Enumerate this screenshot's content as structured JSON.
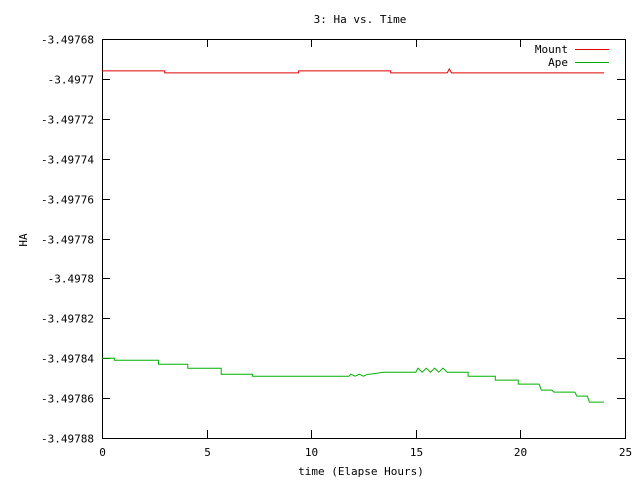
{
  "chart_data": {
    "type": "line",
    "title": "3: Ha vs. Time",
    "xlabel": "time (Elapse Hours)",
    "ylabel": "HA",
    "xlim": [
      0,
      25
    ],
    "ylim": [
      -3.49788,
      -3.49768
    ],
    "xticks": [
      0,
      5,
      10,
      15,
      20,
      25
    ],
    "xtick_labels": [
      "0",
      "5",
      "10",
      "15",
      "20",
      "25"
    ],
    "yticks": [
      -3.49768,
      -3.4977,
      -3.49772,
      -3.49774,
      -3.49776,
      -3.49778,
      -3.4978,
      -3.49782,
      -3.49784,
      -3.49786,
      -3.49788
    ],
    "ytick_labels": [
      "-3.49768",
      "-3.4977",
      "-3.49772",
      "-3.49774",
      "-3.49776",
      "-3.49778",
      "-3.4978",
      "-3.49782",
      "-3.49784",
      "-3.49786",
      "-3.49788"
    ],
    "grid": false,
    "legend_position": "top-right",
    "series": [
      {
        "name": "Mount",
        "color": "#e00000",
        "x": [
          0,
          3.0,
          3.0,
          9.4,
          9.4,
          13.8,
          13.8,
          16.5,
          16.6,
          16.7,
          24
        ],
        "y": [
          -3.497696,
          -3.497696,
          -3.497697,
          -3.497697,
          -3.497696,
          -3.497696,
          -3.497697,
          -3.497697,
          -3.497695,
          -3.497697,
          -3.497697
        ]
      },
      {
        "name": "Ape",
        "color": "#00b000",
        "x": [
          0,
          0.6,
          0.6,
          2.7,
          2.7,
          4.1,
          4.1,
          5.7,
          5.7,
          7.2,
          7.2,
          11.8,
          11.9,
          12.1,
          12.3,
          12.5,
          12.7,
          12.8,
          13.5,
          15.0,
          15.1,
          15.3,
          15.5,
          15.7,
          15.9,
          16.1,
          16.3,
          16.5,
          16.7,
          17.5,
          17.5,
          18.8,
          18.8,
          19.9,
          19.9,
          20.9,
          21.0,
          21.5,
          21.6,
          22.6,
          22.7,
          23.2,
          23.3,
          24
        ],
        "y": [
          -3.49784,
          -3.49784,
          -3.497841,
          -3.497841,
          -3.497843,
          -3.497843,
          -3.497845,
          -3.497845,
          -3.497848,
          -3.497848,
          -3.497849,
          -3.497849,
          -3.497848,
          -3.497849,
          -3.497848,
          -3.497849,
          -3.497848,
          -3.497848,
          -3.497847,
          -3.497847,
          -3.497845,
          -3.497847,
          -3.497845,
          -3.497847,
          -3.497845,
          -3.497847,
          -3.497845,
          -3.497847,
          -3.497847,
          -3.497847,
          -3.497849,
          -3.497849,
          -3.497851,
          -3.497851,
          -3.497853,
          -3.497853,
          -3.497856,
          -3.497856,
          -3.497857,
          -3.497857,
          -3.497859,
          -3.497859,
          -3.497862,
          -3.497862
        ]
      }
    ]
  }
}
